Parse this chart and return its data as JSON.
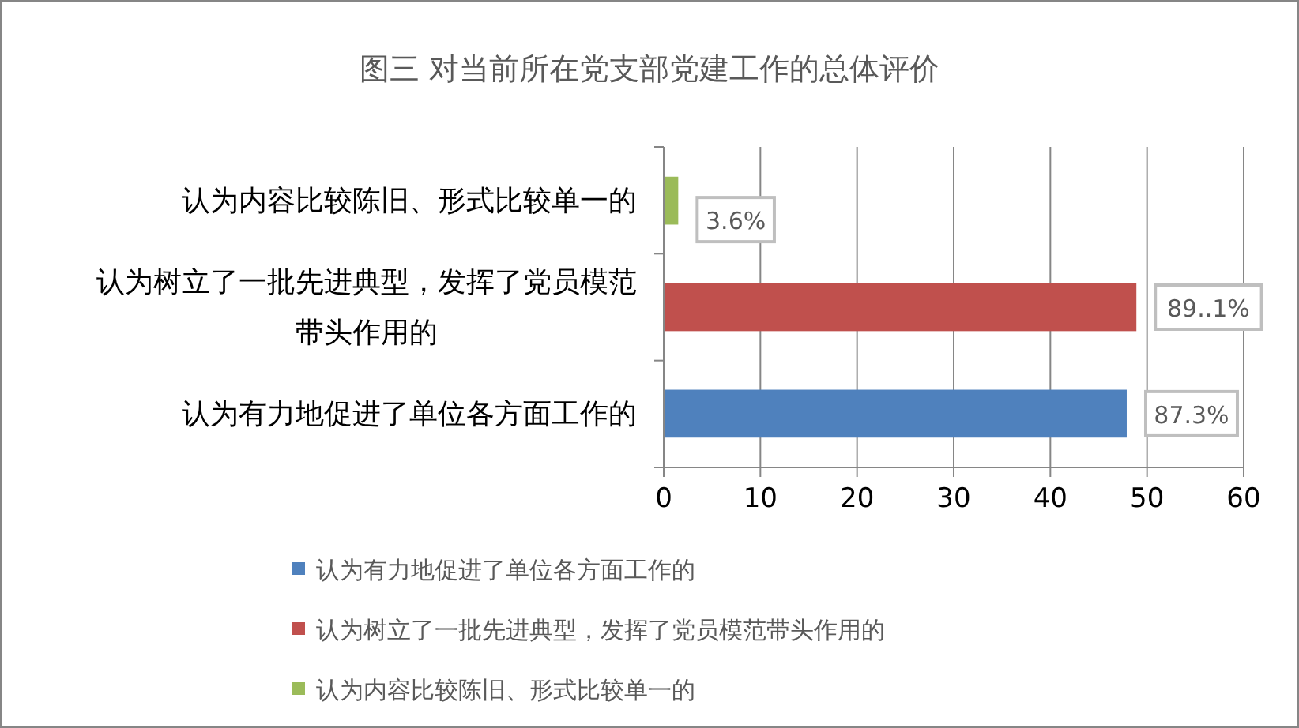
{
  "chart_data": {
    "type": "bar",
    "orientation": "horizontal",
    "stacked": true,
    "title": "图三  对当前所在党支部党建工作的总体评价",
    "categories": [
      "认为内容比较陈旧、形式比较单一的",
      "认为树立了一批先进典型，发挥了党员模范带头作用的",
      "认为有力地促进了单位各方面工作的"
    ],
    "series": [
      {
        "name": "认为有力地促进了单位各方面工作的",
        "color": "#4f81bd",
        "values": [
          null,
          null,
          47.9
        ]
      },
      {
        "name": "认为树立了一批先进典型，发挥了党员模范带头作用的",
        "color": "#c0504d",
        "values": [
          null,
          48.9,
          null
        ]
      },
      {
        "name": "认为内容比较陈旧、形式比较单一的",
        "color": "#9bbb59",
        "values": [
          1.5,
          null,
          null
        ]
      }
    ],
    "annotations": [
      {
        "text": "87.3%",
        "x": 47.9,
        "y": "认为有力地促进了单位各方面工作的"
      },
      {
        "text": "89..1%",
        "x": 48.9,
        "y": "认为树立了一批先进典型，发挥了党员模范带头作用的"
      },
      {
        "text": "3.6%",
        "x": 1.5,
        "y": "认为内容比较陈旧、形式比较单一的"
      }
    ],
    "xlim": [
      0,
      60
    ],
    "xticks": [
      0,
      10,
      20,
      30,
      40,
      50,
      60
    ],
    "grid": "x",
    "legend": "bottom"
  }
}
